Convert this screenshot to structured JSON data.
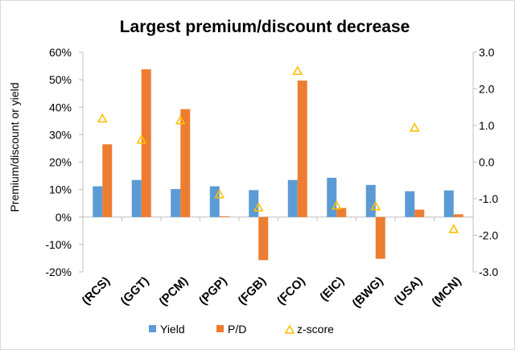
{
  "chart_data": {
    "type": "bar",
    "title": "Largest premium/discount decrease",
    "ylabel": "Premium/discount or yield",
    "categories": [
      "(RCS)",
      "(GGT)",
      "(PCM)",
      "(PGP)",
      "(FGB)",
      "(FCO)",
      "(EIC)",
      "(BWG)",
      "(USA)",
      "(MCN)"
    ],
    "series": [
      {
        "name": "Yield",
        "axis": "left",
        "color": "#5b9bd5",
        "values": [
          0.112,
          0.135,
          0.102,
          0.112,
          0.098,
          0.135,
          0.143,
          0.117,
          0.094,
          0.097
        ]
      },
      {
        "name": "P/D",
        "axis": "left",
        "color": "#ed7d31",
        "values": [
          0.265,
          0.538,
          0.393,
          0.003,
          -0.157,
          0.497,
          0.033,
          -0.152,
          0.027,
          0.01
        ]
      },
      {
        "name": "z-score",
        "axis": "right",
        "type": "marker",
        "marker": "triangle-open",
        "color": "#ffc000",
        "values": [
          1.2,
          0.62,
          1.15,
          -0.87,
          -1.23,
          2.5,
          -1.18,
          -1.2,
          0.95,
          -1.82
        ]
      }
    ],
    "y_left": {
      "range": [
        -0.2,
        0.6
      ],
      "ticks": [
        -0.2,
        -0.1,
        0,
        0.1,
        0.2,
        0.3,
        0.4,
        0.5,
        0.6
      ],
      "tick_labels": [
        "-20%",
        "-10%",
        "0%",
        "10%",
        "20%",
        "30%",
        "40%",
        "50%",
        "60%"
      ]
    },
    "y_right": {
      "range": [
        -3,
        3
      ],
      "ticks": [
        -3,
        -2,
        -1,
        0,
        1,
        2,
        3
      ],
      "tick_labels": [
        "-3.0",
        "-2.0",
        "-1.0",
        "0.0",
        "1.0",
        "2.0",
        "3.0"
      ]
    },
    "grid": false,
    "legend": {
      "position": "bottom",
      "entries": [
        "Yield",
        "P/D",
        "z-score"
      ]
    }
  }
}
